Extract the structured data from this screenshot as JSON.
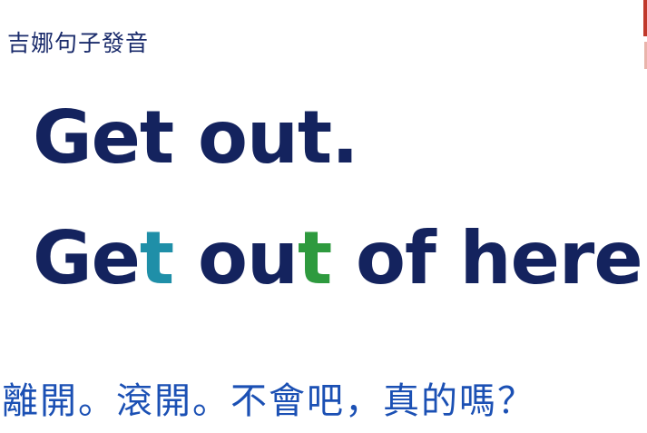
{
  "header": {
    "title": "吉娜句子發音"
  },
  "lesson": {
    "sentence1": "Get out.",
    "sentence2": {
      "p1": "Ge",
      "h1": "t",
      "p2": " ou",
      "h2": "t",
      "p3": " of here."
    },
    "translation": "離開。滾開。不會吧，真的嗎？"
  },
  "colors": {
    "text": "#14235e",
    "highlight_teal": "#1f8fa8",
    "highlight_green": "#2e9a3e",
    "translation": "#1b50b4",
    "accent": "#c0392b"
  }
}
